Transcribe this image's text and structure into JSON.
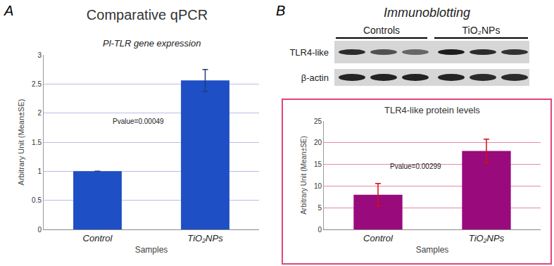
{
  "chart_data": [
    {
      "panel": "A",
      "type": "bar",
      "title": "Comparative qPCR",
      "subtitle": "Pl-TLR gene expression",
      "categories": [
        "Control",
        "TiO₂NPs"
      ],
      "values": [
        1,
        2.56
      ],
      "errors": [
        0,
        0.19
      ],
      "color": "#1f4fc4",
      "xlabel": "Samples",
      "ylabel": "Arbitrary Unit (Mean±SE)",
      "ylim": [
        0,
        3
      ],
      "yticks": [
        0,
        0.5,
        1,
        1.5,
        2,
        2.5,
        3
      ],
      "grid": true,
      "annotations": [
        "Pvalue=0.00049"
      ]
    },
    {
      "panel": "B",
      "type": "bar",
      "title": "TLR4-like protein levels",
      "categories": [
        "Control",
        "TiO₂NPs"
      ],
      "values": [
        8,
        18.1
      ],
      "errors": [
        2.6,
        2.7
      ],
      "color": "#990a7c",
      "xlabel": "Samples",
      "ylabel": "Arbitrary Unit (Mean±SE)",
      "ylim": [
        0,
        25
      ],
      "yticks": [
        0,
        5,
        10,
        15,
        20,
        25
      ],
      "grid": true,
      "annotations": [
        "Pvalue=0.00299"
      ]
    }
  ],
  "blot": {
    "title": "Immunoblotting",
    "groups": [
      "Controls",
      "TiO₂NPs"
    ],
    "rows": [
      "TLR4-like",
      "β-actin"
    ]
  }
}
